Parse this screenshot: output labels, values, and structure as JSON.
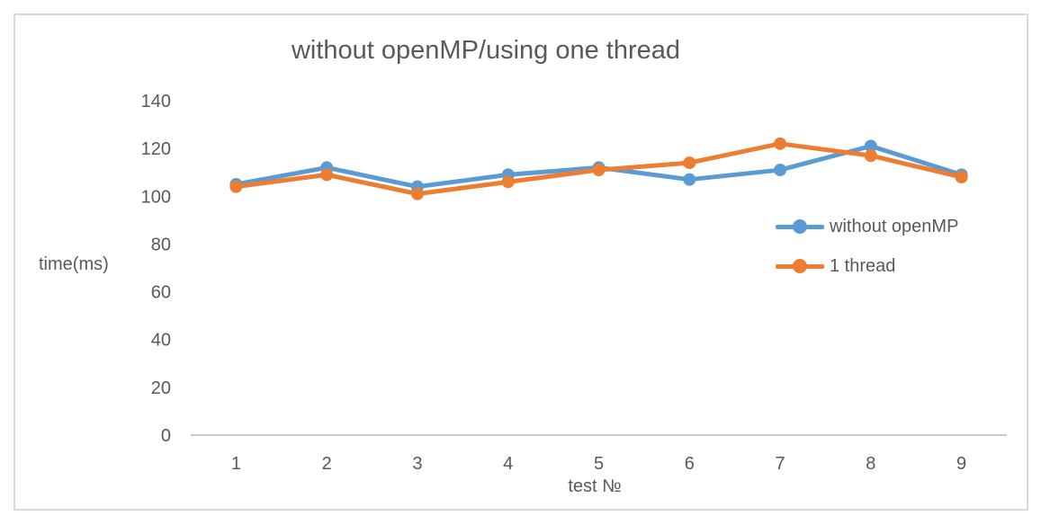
{
  "chart_data": {
    "type": "line",
    "title": "without openMP/using one thread",
    "xlabel": "test №",
    "ylabel": "time(ms)",
    "categories": [
      "1",
      "2",
      "3",
      "4",
      "5",
      "6",
      "7",
      "8",
      "9"
    ],
    "ylim": [
      0,
      140
    ],
    "ytick_step": 20,
    "yticks": [
      0,
      20,
      40,
      60,
      80,
      100,
      120,
      140
    ],
    "grid": false,
    "legend_position": "middle-right",
    "series": [
      {
        "name": "without openMP",
        "color": "#5B9BD5",
        "values": [
          105,
          112,
          104,
          109,
          112,
          107,
          111,
          121,
          109
        ]
      },
      {
        "name": "1 thread",
        "color": "#ED7D31",
        "values": [
          104,
          109,
          101,
          106,
          111,
          114,
          122,
          117,
          108
        ]
      }
    ]
  },
  "colors": {
    "text": "#595959",
    "axis_line": "#C9C9C9",
    "border": "#D9D9D9",
    "background": "#FFFFFF"
  }
}
